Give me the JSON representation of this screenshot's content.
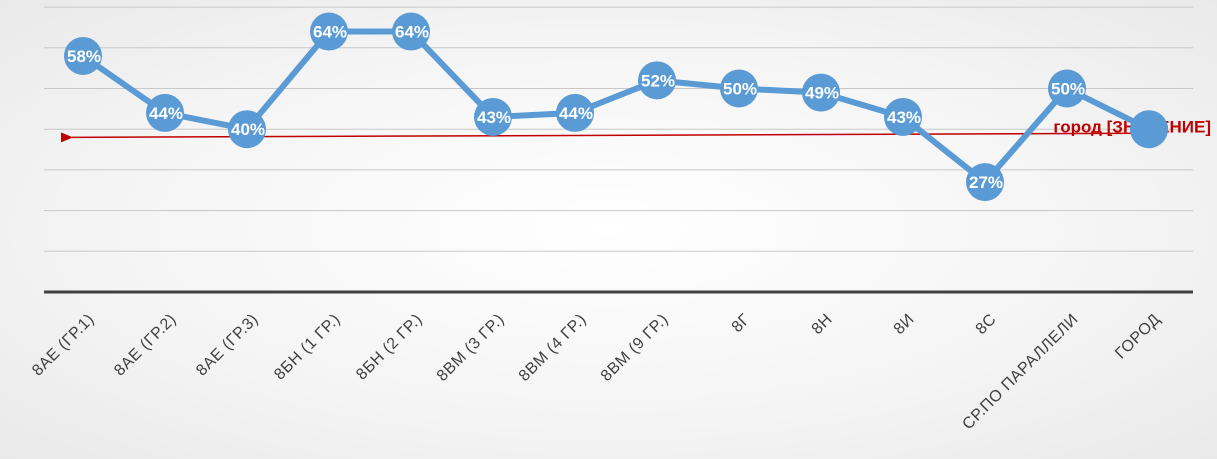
{
  "chart_data": {
    "type": "line",
    "categories": [
      "8АЕ (ГР.1)",
      "8АЕ (ГР.2)",
      "8АЕ (ГР.3)",
      "8БН (1 ГР.)",
      "8БН (2 ГР.)",
      "8ВМ (3 ГР.)",
      "8ВМ (4 ГР.)",
      "8ВМ (9 ГР.)",
      "8Г",
      "8Н",
      "8И",
      "8С",
      "СР.ПО ПАРАЛЛЕЛИ",
      "ГОРОД"
    ],
    "series": [
      {
        "values": [
          58,
          44,
          40,
          64,
          64,
          43,
          44,
          52,
          50,
          49,
          43,
          27,
          50,
          40
        ],
        "labels": [
          "58%",
          "44%",
          "40%",
          "64%",
          "64%",
          "43%",
          "44%",
          "52%",
          "50%",
          "49%",
          "43%",
          "27%",
          "50%",
          ""
        ]
      }
    ],
    "ylim": [
      0,
      70
    ],
    "grid": true,
    "annotation": {
      "text": "город [ЗНАЧЕНИЕ]",
      "value_at_start": 38,
      "value_at_end": 39
    },
    "colors": {
      "series": "#5b9bd5",
      "annotation": "#c00000",
      "axis": "#404040",
      "grid": "#c8c8c8"
    }
  }
}
